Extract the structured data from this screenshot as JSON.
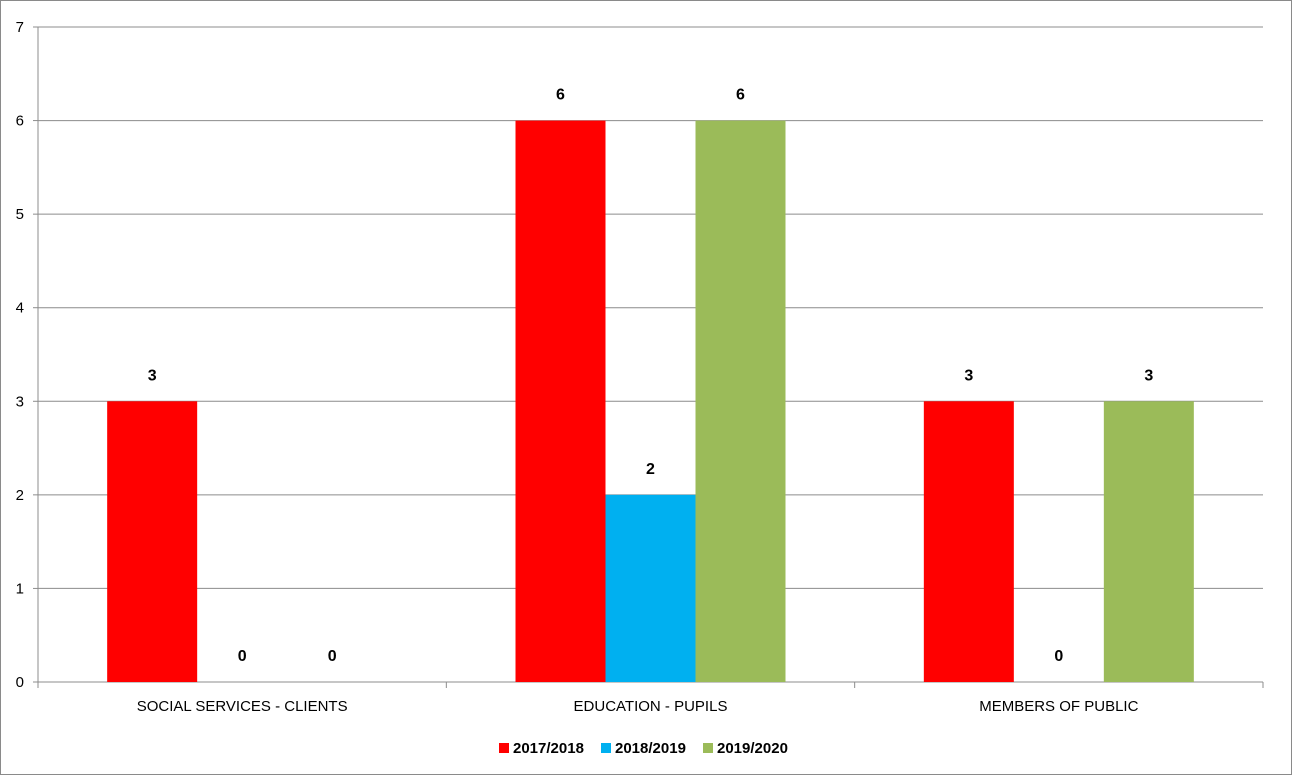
{
  "chart_data": {
    "type": "bar",
    "title": "",
    "xlabel": "",
    "ylabel": "",
    "ylim": [
      0,
      7
    ],
    "yticks": [
      "0",
      "1",
      "2",
      "3",
      "4",
      "5",
      "6",
      "7"
    ],
    "grid": true,
    "legend_position": "bottom",
    "categories": [
      "SOCIAL SERVICES - CLIENTS",
      "EDUCATION - PUPILS",
      "MEMBERS OF PUBLIC"
    ],
    "series": [
      {
        "name": "2017/2018",
        "color": "#ff0000",
        "values": [
          3,
          6,
          3
        ],
        "labels": [
          "3",
          "6",
          "3"
        ]
      },
      {
        "name": "2018/2019",
        "color": "#00b0f0",
        "values": [
          0,
          2,
          0
        ],
        "labels": [
          "0",
          "2",
          "0"
        ]
      },
      {
        "name": "2019/2020",
        "color": "#9bbb59",
        "values": [
          0,
          6,
          3
        ],
        "labels": [
          "0",
          "6",
          "3"
        ]
      }
    ]
  }
}
